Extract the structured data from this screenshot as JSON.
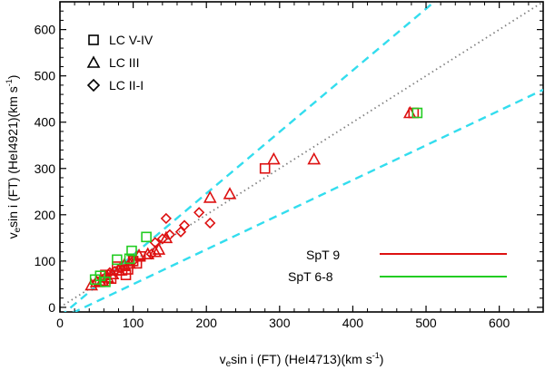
{
  "chart_data": {
    "type": "scatter",
    "title": "",
    "xlabel": {
      "prefix": "v",
      "sub": "e",
      "main": "sin i (FT) (HeI4713)(km s",
      "sup": "-1",
      "suffix": ")"
    },
    "ylabel": {
      "prefix": "v",
      "sub": "e",
      "main": "sin i (FT) (HeI4921)(km s",
      "sup": "-1",
      "suffix": ")"
    },
    "xlim": [
      0,
      660
    ],
    "ylim": [
      -10,
      660
    ],
    "xticks": [
      0,
      100,
      200,
      300,
      400,
      500,
      600
    ],
    "yticks": [
      0,
      100,
      200,
      300,
      400,
      500,
      600
    ],
    "xtick_labels": [
      "0",
      "100",
      "200",
      "300",
      "400",
      "500",
      "600"
    ],
    "ytick_labels": [
      "0",
      "100",
      "200",
      "300",
      "400",
      "500",
      "600"
    ],
    "reference_lines": [
      {
        "name": "one-to-one",
        "slope": 1.0,
        "style": "dotted",
        "color": "#808080"
      },
      {
        "name": "upper-bound",
        "slope": 1.33,
        "offset": -20,
        "style": "dashed",
        "color": "#33ddee"
      },
      {
        "name": "lower-bound",
        "slope": 0.75,
        "offset": -25,
        "style": "dashed",
        "color": "#33ddee"
      }
    ],
    "marker_legend": [
      {
        "label": "LC V-IV",
        "marker": "square"
      },
      {
        "label": "LC III",
        "marker": "triangle"
      },
      {
        "label": "LC II-I",
        "marker": "diamond"
      }
    ],
    "color_legend": [
      {
        "label": "SpT 9",
        "color": "#dd1111"
      },
      {
        "label": "SpT 6-8",
        "color": "#22cc22"
      }
    ],
    "series": [
      {
        "name": "SpT 9 LC V-IV",
        "color": "#dd1111",
        "marker": "square",
        "x": [
          55,
          62,
          70,
          78,
          85,
          90,
          93,
          100,
          105,
          110,
          280,
          483
        ],
        "y": [
          55,
          70,
          62,
          88,
          80,
          70,
          82,
          100,
          95,
          110,
          300,
          420
        ]
      },
      {
        "name": "SpT 9 LC III",
        "color": "#dd1111",
        "marker": "triangle",
        "x": [
          43,
          50,
          58,
          65,
          72,
          80,
          88,
          95,
          108,
          120,
          130,
          135,
          145,
          205,
          232,
          292,
          347,
          478
        ],
        "y": [
          48,
          55,
          58,
          65,
          72,
          80,
          92,
          95,
          112,
          115,
          120,
          125,
          150,
          237,
          245,
          320,
          320,
          420
        ]
      },
      {
        "name": "SpT 9 LC II-I",
        "color": "#dd1111",
        "marker": "diamond",
        "x": [
          50,
          60,
          68,
          75,
          82,
          100,
          125,
          130,
          140,
          145,
          150,
          165,
          170,
          190,
          205
        ],
        "y": [
          55,
          62,
          75,
          78,
          85,
          100,
          115,
          140,
          148,
          192,
          157,
          163,
          177,
          205,
          182
        ]
      },
      {
        "name": "SpT 6-8 LC V-IV",
        "color": "#22cc22",
        "marker": "square",
        "x": [
          48,
          55,
          62,
          78,
          95,
          98,
          118,
          488
        ],
        "y": [
          60,
          68,
          55,
          103,
          105,
          122,
          152,
          420
        ]
      }
    ]
  }
}
